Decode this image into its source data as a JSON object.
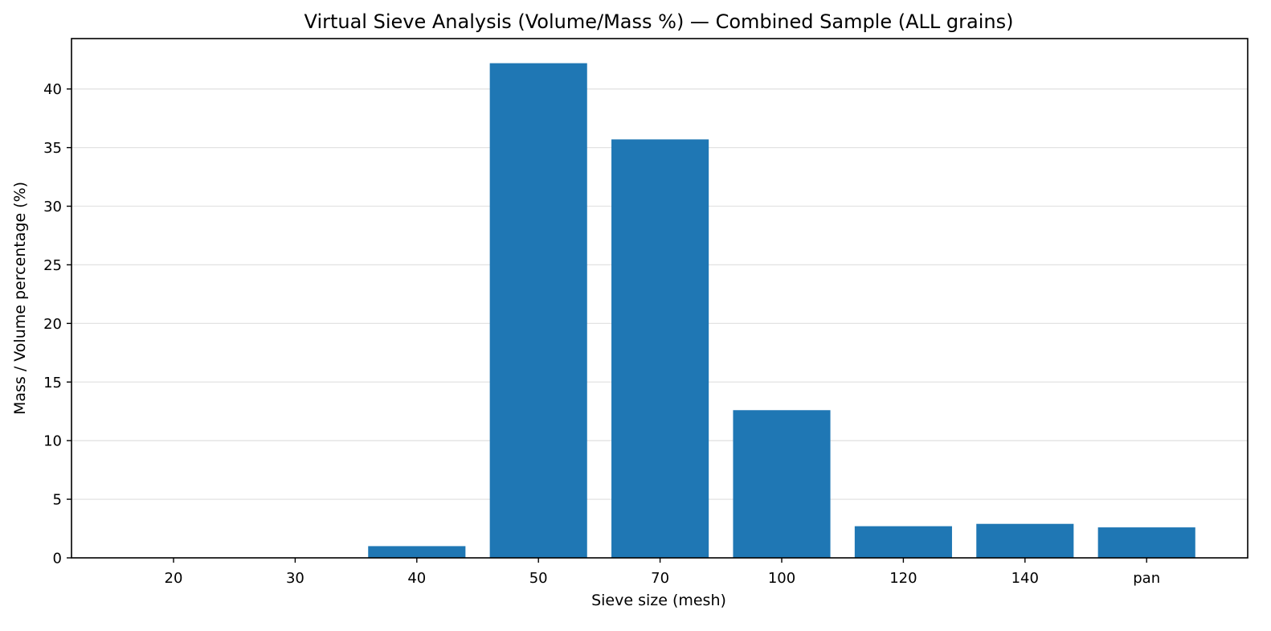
{
  "chart_data": {
    "type": "bar",
    "title": "Virtual Sieve Analysis (Volume/Mass %) — Combined Sample (ALL grains)",
    "xlabel": "Sieve size (mesh)",
    "ylabel": "Mass / Volume percentage (%)",
    "categories": [
      "20",
      "30",
      "40",
      "50",
      "70",
      "100",
      "120",
      "140",
      "pan"
    ],
    "values": [
      0,
      0,
      1.0,
      42.2,
      35.7,
      12.6,
      2.7,
      2.9,
      2.6
    ],
    "ylim": [
      0,
      44.3
    ],
    "yticks": [
      0,
      5,
      10,
      15,
      20,
      25,
      30,
      35,
      40
    ],
    "grid": "horizontal",
    "bar_color": "#1f77b4"
  }
}
